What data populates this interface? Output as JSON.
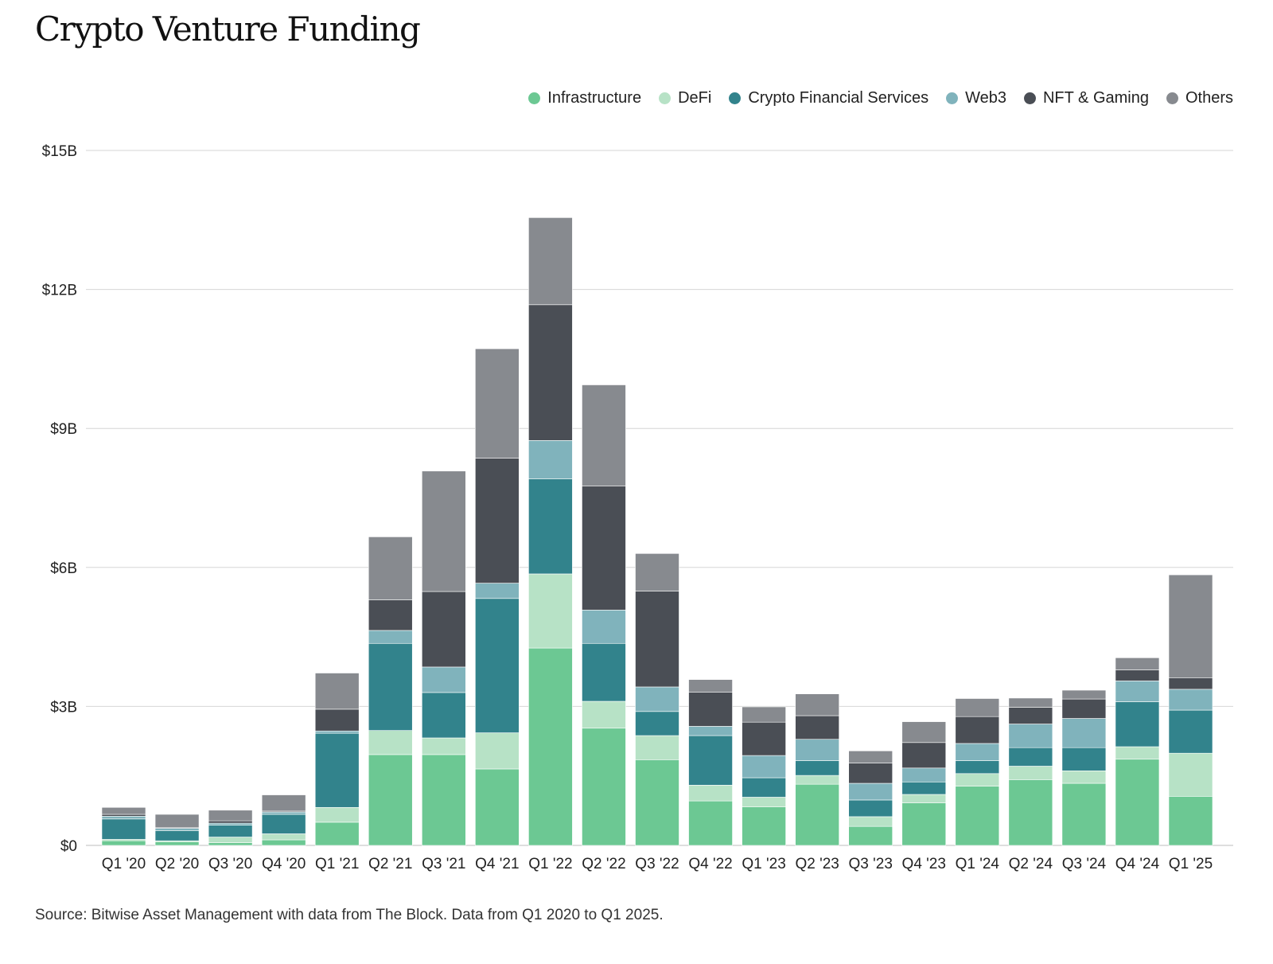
{
  "title": "Crypto Venture Funding",
  "source": "Source: Bitwise Asset Management with data from The Block. Data from Q1 2020 to Q1 2025.",
  "chart_data": {
    "type": "bar",
    "stacked": true,
    "title": "Crypto Venture Funding",
    "xlabel": "",
    "ylabel": "",
    "ylim": [
      0,
      15
    ],
    "yticks": [
      0,
      3,
      6,
      9,
      12,
      15
    ],
    "ytick_labels": [
      "$0",
      "$3B",
      "$6B",
      "$9B",
      "$12B",
      "$15B"
    ],
    "grid": true,
    "legend_position": "top-right",
    "categories": [
      "Q1 '20",
      "Q2 '20",
      "Q3 '20",
      "Q4 '20",
      "Q1 '21",
      "Q2 '21",
      "Q3 '21",
      "Q4 '21",
      "Q1 '22",
      "Q2 '22",
      "Q3 '22",
      "Q4 '22",
      "Q1 '23",
      "Q2 '23",
      "Q3 '23",
      "Q4 '23",
      "Q1 '24",
      "Q2 '24",
      "Q3 '24",
      "Q4 '24",
      "Q1 '25"
    ],
    "series": [
      {
        "name": "Infrastructure",
        "color": "#6cc893",
        "values": [
          0.1,
          0.08,
          0.06,
          0.12,
          0.5,
          1.96,
          1.96,
          1.65,
          4.26,
          2.53,
          1.85,
          0.96,
          0.83,
          1.32,
          0.41,
          0.92,
          1.28,
          1.42,
          1.34,
          1.86,
          1.06
        ]
      },
      {
        "name": "DeFi",
        "color": "#b7e2c6",
        "values": [
          0.03,
          0.02,
          0.12,
          0.13,
          0.32,
          0.52,
          0.36,
          0.78,
          1.6,
          0.58,
          0.52,
          0.34,
          0.21,
          0.19,
          0.21,
          0.18,
          0.27,
          0.29,
          0.27,
          0.27,
          0.93
        ]
      },
      {
        "name": "Crypto Financial Services",
        "color": "#32838c",
        "values": [
          0.44,
          0.22,
          0.26,
          0.42,
          1.6,
          1.88,
          0.98,
          2.9,
          2.05,
          1.25,
          0.52,
          1.07,
          0.42,
          0.32,
          0.36,
          0.27,
          0.28,
          0.4,
          0.5,
          0.97,
          0.93
        ]
      },
      {
        "name": "Web3",
        "color": "#80b3bc",
        "values": [
          0.06,
          0.05,
          0.04,
          0.05,
          0.05,
          0.28,
          0.55,
          0.33,
          0.83,
          0.72,
          0.53,
          0.2,
          0.48,
          0.46,
          0.36,
          0.3,
          0.37,
          0.51,
          0.63,
          0.45,
          0.45
        ]
      },
      {
        "name": "NFT & Gaming",
        "color": "#4a4e55",
        "values": [
          0.04,
          0.02,
          0.05,
          0.02,
          0.47,
          0.66,
          1.63,
          2.7,
          2.93,
          2.68,
          2.07,
          0.74,
          0.72,
          0.51,
          0.44,
          0.55,
          0.58,
          0.36,
          0.42,
          0.24,
          0.25
        ]
      },
      {
        "name": "Others",
        "color": "#878a8f",
        "values": [
          0.15,
          0.28,
          0.23,
          0.35,
          0.78,
          1.36,
          2.6,
          2.36,
          1.88,
          2.18,
          0.81,
          0.27,
          0.33,
          0.47,
          0.26,
          0.45,
          0.39,
          0.2,
          0.19,
          0.26,
          2.22
        ]
      }
    ]
  }
}
